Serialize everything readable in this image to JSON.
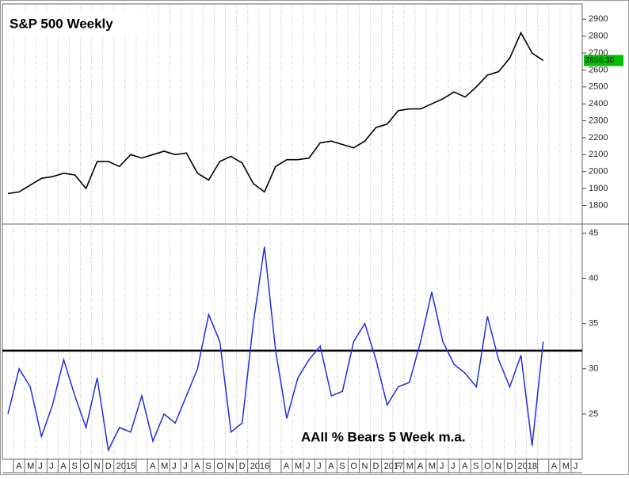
{
  "chart_data": [
    {
      "type": "line",
      "title": "S&P 500 Weekly",
      "color": "#000000",
      "values": [
        1870,
        1880,
        1920,
        1960,
        1970,
        1990,
        1980,
        1900,
        2060,
        2060,
        2030,
        2100,
        2080,
        2100,
        2120,
        2100,
        2110,
        1990,
        1950,
        2060,
        2090,
        2050,
        1930,
        1880,
        2030,
        2070,
        2070,
        2080,
        2170,
        2180,
        2160,
        2140,
        2180,
        2260,
        2280,
        2360,
        2370,
        2370,
        2400,
        2430,
        2470,
        2440,
        2500,
        2570,
        2590,
        2670,
        2820,
        2700,
        2656.3,
        null,
        null,
        null
      ],
      "value_labels": [
        null,
        null,
        null,
        null,
        null,
        null,
        null,
        null,
        null,
        null,
        null,
        null,
        null,
        null,
        null,
        null,
        null,
        null,
        null,
        null,
        null,
        null,
        null,
        null,
        null,
        null,
        null,
        null,
        null,
        null,
        null,
        null,
        null,
        null,
        null,
        null,
        null,
        null,
        null,
        null,
        null,
        null,
        null,
        null,
        null,
        null,
        null,
        null,
        "2656.30",
        null,
        null,
        null
      ],
      "label_color": "#00c000",
      "ylim": [
        1690,
        2990
      ],
      "yticks": [
        1800,
        1900,
        2000,
        2100,
        2200,
        2300,
        2400,
        2500,
        2600,
        2700,
        2800,
        2900
      ],
      "grid": true
    },
    {
      "type": "line",
      "title": "AAII % Bears 5 Week m.a.",
      "color": "#1f2fe0",
      "categories": [
        null,
        "A",
        "M",
        "J",
        "J",
        "A",
        "S",
        "O",
        "N",
        "D",
        "2015",
        null,
        null,
        "A",
        "M",
        "J",
        "J",
        "A",
        "S",
        "O",
        "N",
        "D",
        "2016",
        null,
        null,
        "A",
        "M",
        "J",
        "J",
        "A",
        "S",
        "O",
        "N",
        "D",
        "2017",
        "F",
        "M",
        "A",
        "M",
        "J",
        "J",
        "A",
        "S",
        "O",
        "N",
        "D",
        "2018",
        null,
        null,
        "A",
        "M",
        "J"
      ],
      "values": [
        25,
        30,
        28,
        22.5,
        26,
        31,
        27,
        23.5,
        29,
        21,
        23.5,
        23,
        27,
        22,
        25,
        24,
        27,
        30,
        36,
        33,
        23,
        24,
        35,
        43.5,
        32,
        24.5,
        29,
        31,
        32.5,
        27,
        27.5,
        33,
        35,
        31,
        26,
        28,
        28.5,
        33,
        38.5,
        33,
        30.5,
        29.5,
        28,
        35.8,
        31,
        28,
        31.5,
        21.5,
        33,
        null,
        null,
        null
      ],
      "reference_line": 32,
      "reference_color": "#000000",
      "ylim": [
        20,
        46
      ],
      "yticks": [
        25,
        30,
        35,
        40,
        45
      ],
      "grid": true
    }
  ]
}
